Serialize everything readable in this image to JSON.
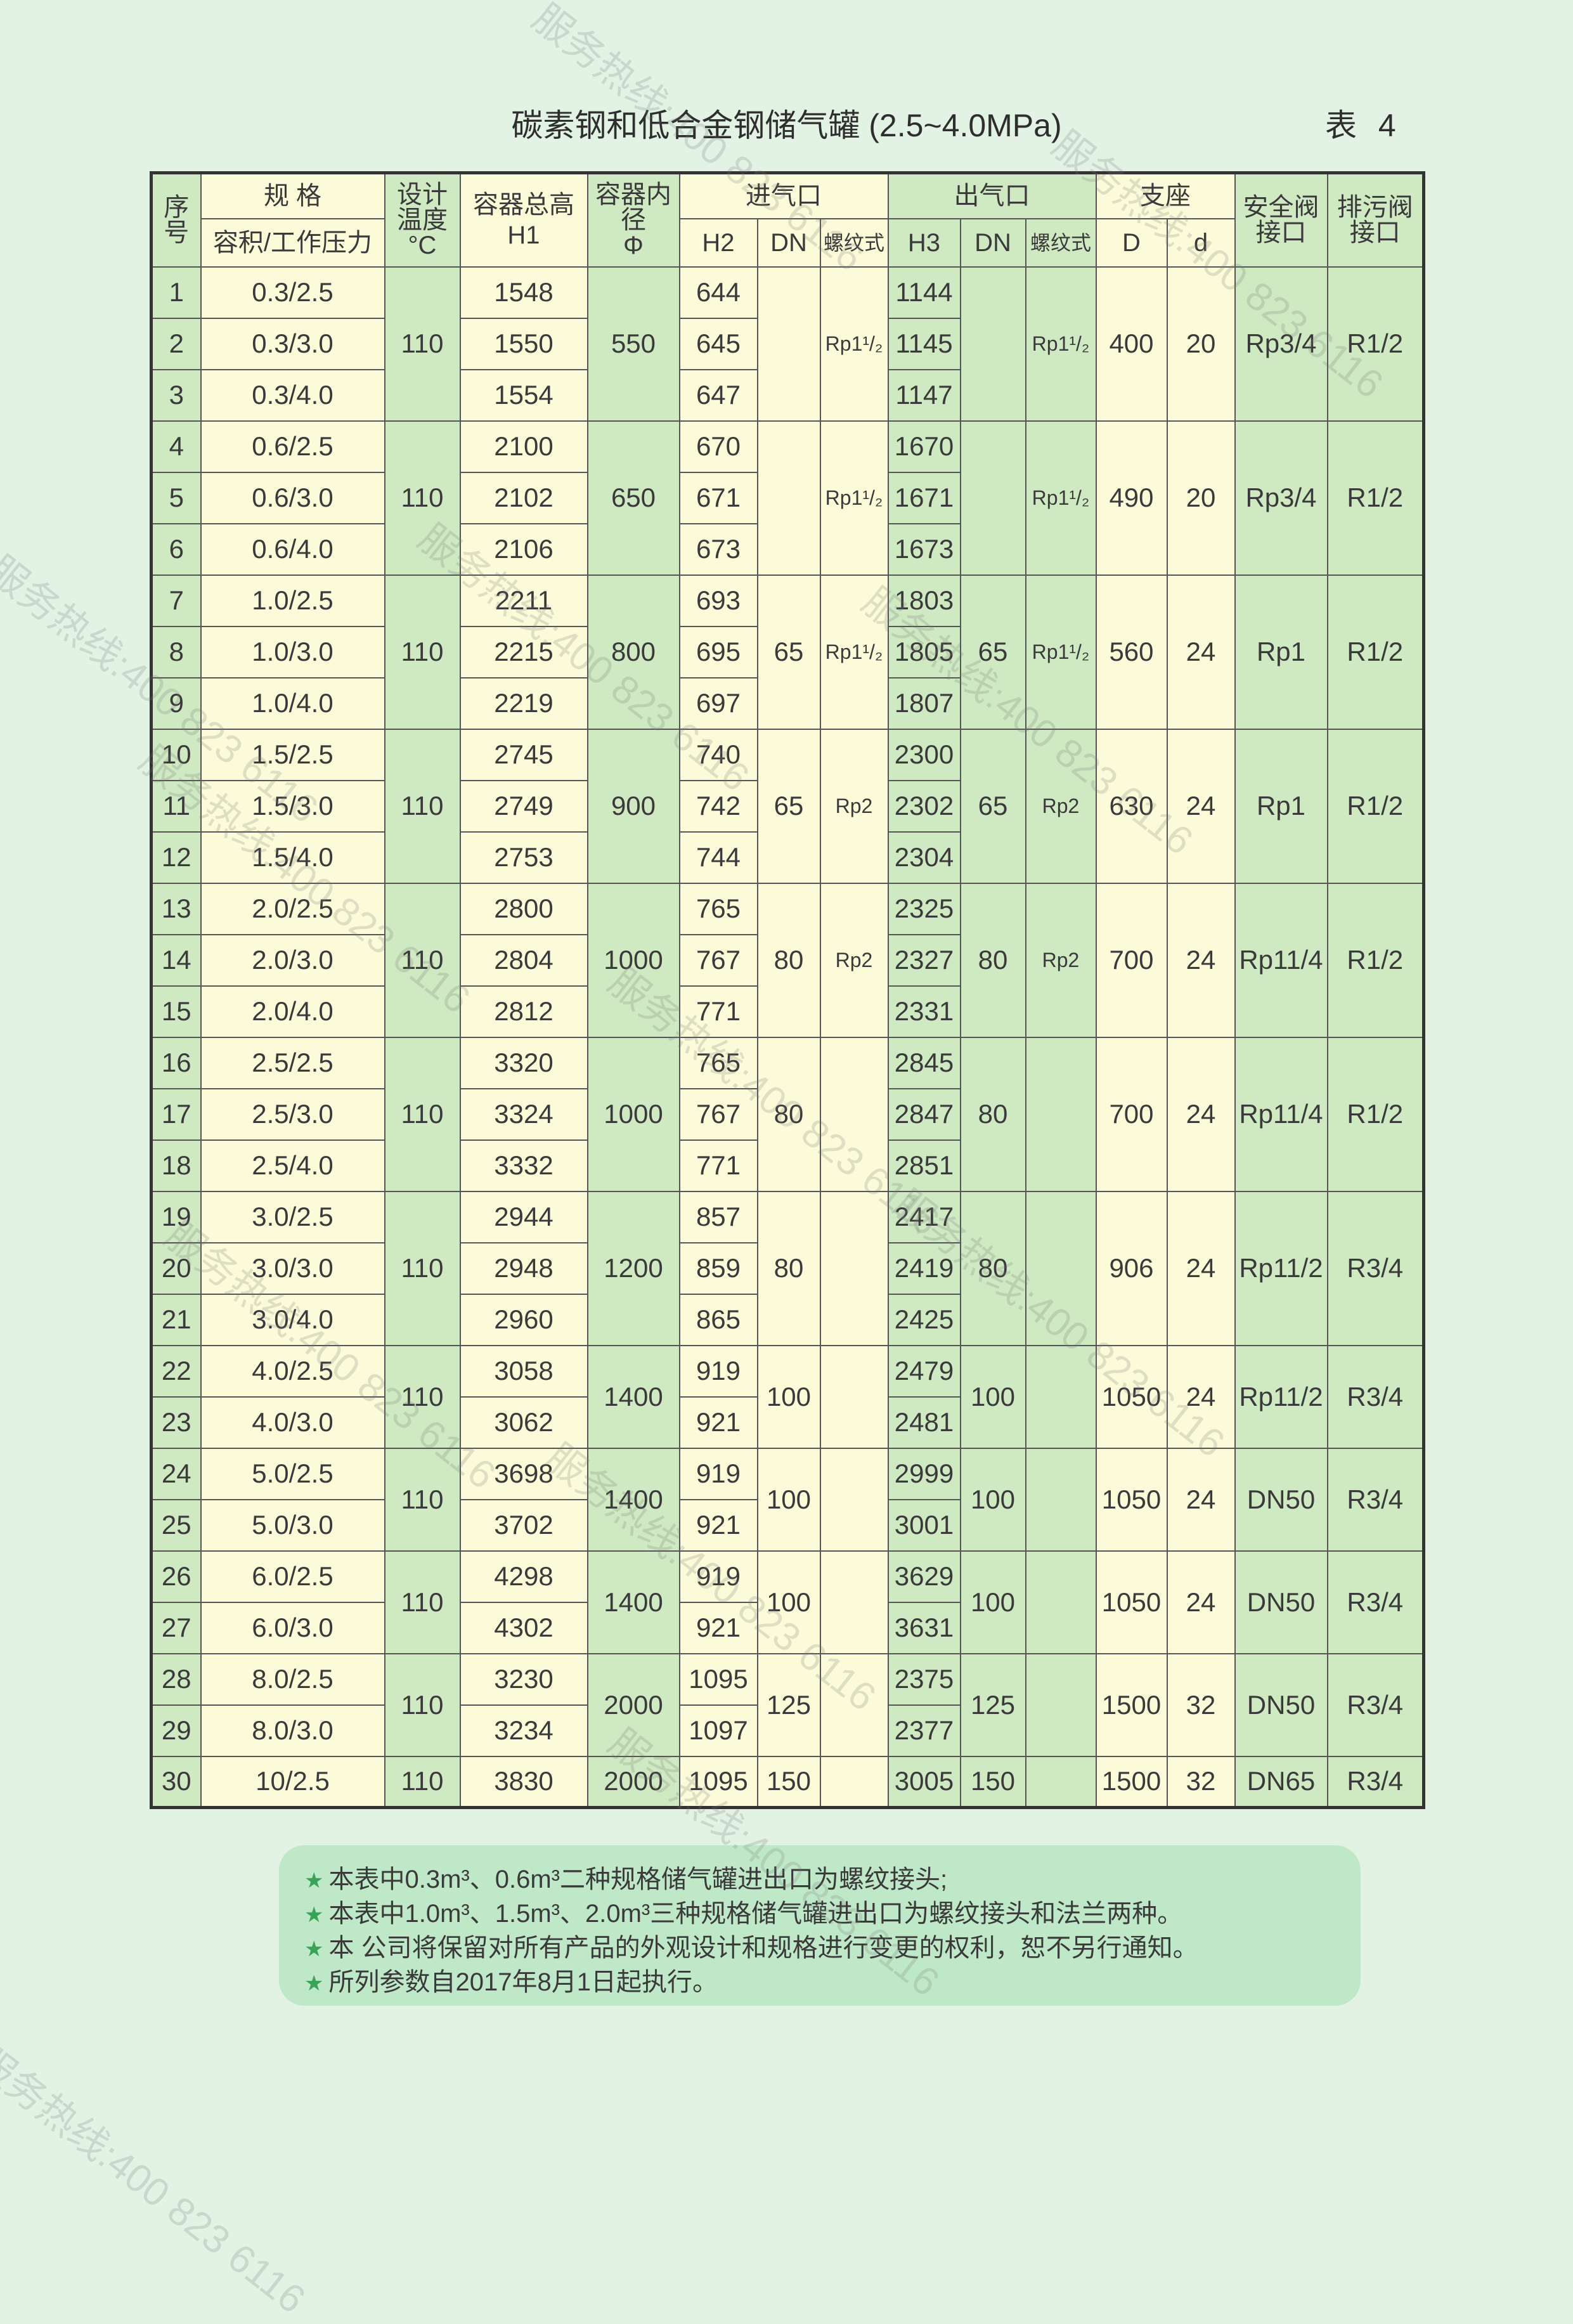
{
  "title": "碳素钢和低合金钢储气罐 (2.5~4.0MPa)",
  "table_number": "表 4",
  "watermark": "服务热线:400 823 6116",
  "colors": {
    "green_cell": "#cfeac2",
    "cream_cell": "#fbfbd9",
    "page_bg": "#e2f3e4",
    "note_bg": "#bfe8c8",
    "star": "#3aa357"
  },
  "headers": {
    "seq": "序号",
    "spec": "规 格",
    "spec_sub": "容积/工作压力",
    "temp": "设计温度",
    "temp_unit": "°C",
    "height": "容器总高",
    "height_sub": "H1",
    "diameter": "容器内径",
    "diameter_sub": "Φ",
    "inlet": "进气口",
    "outlet": "出气口",
    "support": "支座",
    "safety": "安全阀接口",
    "drain": "排污阀接口",
    "h2": "H2",
    "dn": "DN",
    "thread": "螺纹式",
    "h3": "H3",
    "d_big": "D",
    "d_small": "d"
  },
  "groups": [
    {
      "temp": "110",
      "dia": "550",
      "in_dn": "",
      "in_thread": "Rp1¹/₂",
      "out_dn": "",
      "out_thread": "Rp1¹/₂",
      "D": "400",
      "d": "20",
      "safety": "Rp3/4",
      "drain": "R1/2",
      "rows": [
        {
          "no": "1",
          "spec": "0.3/2.5",
          "h1": "1548",
          "h2": "644",
          "h3": "1144"
        },
        {
          "no": "2",
          "spec": "0.3/3.0",
          "h1": "1550",
          "h2": "645",
          "h3": "1145"
        },
        {
          "no": "3",
          "spec": "0.3/4.0",
          "h1": "1554",
          "h2": "647",
          "h3": "1147"
        }
      ]
    },
    {
      "temp": "110",
      "dia": "650",
      "in_dn": "",
      "in_thread": "Rp1¹/₂",
      "out_dn": "",
      "out_thread": "Rp1¹/₂",
      "D": "490",
      "d": "20",
      "safety": "Rp3/4",
      "drain": "R1/2",
      "rows": [
        {
          "no": "4",
          "spec": "0.6/2.5",
          "h1": "2100",
          "h2": "670",
          "h3": "1670"
        },
        {
          "no": "5",
          "spec": "0.6/3.0",
          "h1": "2102",
          "h2": "671",
          "h3": "1671"
        },
        {
          "no": "6",
          "spec": "0.6/4.0",
          "h1": "2106",
          "h2": "673",
          "h3": "1673"
        }
      ]
    },
    {
      "temp": "110",
      "dia": "800",
      "in_dn": "65",
      "in_thread": "Rp1¹/₂",
      "out_dn": "65",
      "out_thread": "Rp1¹/₂",
      "D": "560",
      "d": "24",
      "safety": "Rp1",
      "drain": "R1/2",
      "rows": [
        {
          "no": "7",
          "spec": "1.0/2.5",
          "h1": "2211",
          "h2": "693",
          "h3": "1803"
        },
        {
          "no": "8",
          "spec": "1.0/3.0",
          "h1": "2215",
          "h2": "695",
          "h3": "1805"
        },
        {
          "no": "9",
          "spec": "1.0/4.0",
          "h1": "2219",
          "h2": "697",
          "h3": "1807"
        }
      ]
    },
    {
      "temp": "110",
      "dia": "900",
      "in_dn": "65",
      "in_thread": "Rp2",
      "out_dn": "65",
      "out_thread": "Rp2",
      "D": "630",
      "d": "24",
      "safety": "Rp1",
      "drain": "R1/2",
      "rows": [
        {
          "no": "10",
          "spec": "1.5/2.5",
          "h1": "2745",
          "h2": "740",
          "h3": "2300"
        },
        {
          "no": "11",
          "spec": "1.5/3.0",
          "h1": "2749",
          "h2": "742",
          "h3": "2302"
        },
        {
          "no": "12",
          "spec": "1.5/4.0",
          "h1": "2753",
          "h2": "744",
          "h3": "2304"
        }
      ]
    },
    {
      "temp": "110",
      "dia": "1000",
      "in_dn": "80",
      "in_thread": "Rp2",
      "out_dn": "80",
      "out_thread": "Rp2",
      "D": "700",
      "d": "24",
      "safety": "Rp11/4",
      "drain": "R1/2",
      "rows": [
        {
          "no": "13",
          "spec": "2.0/2.5",
          "h1": "2800",
          "h2": "765",
          "h3": "2325"
        },
        {
          "no": "14",
          "spec": "2.0/3.0",
          "h1": "2804",
          "h2": "767",
          "h3": "2327"
        },
        {
          "no": "15",
          "spec": "2.0/4.0",
          "h1": "2812",
          "h2": "771",
          "h3": "2331"
        }
      ]
    },
    {
      "temp": "110",
      "dia": "1000",
      "in_dn": "80",
      "in_thread": "",
      "out_dn": "80",
      "out_thread": "",
      "D": "700",
      "d": "24",
      "safety": "Rp11/4",
      "drain": "R1/2",
      "rows": [
        {
          "no": "16",
          "spec": "2.5/2.5",
          "h1": "3320",
          "h2": "765",
          "h3": "2845"
        },
        {
          "no": "17",
          "spec": "2.5/3.0",
          "h1": "3324",
          "h2": "767",
          "h3": "2847"
        },
        {
          "no": "18",
          "spec": "2.5/4.0",
          "h1": "3332",
          "h2": "771",
          "h3": "2851"
        }
      ]
    },
    {
      "temp": "110",
      "dia": "1200",
      "in_dn": "80",
      "in_thread": "",
      "out_dn": "80",
      "out_thread": "",
      "D": "906",
      "d": "24",
      "safety": "Rp11/2",
      "drain": "R3/4",
      "rows": [
        {
          "no": "19",
          "spec": "3.0/2.5",
          "h1": "2944",
          "h2": "857",
          "h3": "2417"
        },
        {
          "no": "20",
          "spec": "3.0/3.0",
          "h1": "2948",
          "h2": "859",
          "h3": "2419"
        },
        {
          "no": "21",
          "spec": "3.0/4.0",
          "h1": "2960",
          "h2": "865",
          "h3": "2425"
        }
      ]
    },
    {
      "temp": "110",
      "dia": "1400",
      "in_dn": "100",
      "in_thread": "",
      "out_dn": "100",
      "out_thread": "",
      "D": "1050",
      "d": "24",
      "safety": "Rp11/2",
      "drain": "R3/4",
      "rows": [
        {
          "no": "22",
          "spec": "4.0/2.5",
          "h1": "3058",
          "h2": "919",
          "h3": "2479"
        },
        {
          "no": "23",
          "spec": "4.0/3.0",
          "h1": "3062",
          "h2": "921",
          "h3": "2481"
        }
      ]
    },
    {
      "temp": "110",
      "dia": "1400",
      "in_dn": "100",
      "in_thread": "",
      "out_dn": "100",
      "out_thread": "",
      "D": "1050",
      "d": "24",
      "safety": "DN50",
      "drain": "R3/4",
      "rows": [
        {
          "no": "24",
          "spec": "5.0/2.5",
          "h1": "3698",
          "h2": "919",
          "h3": "2999"
        },
        {
          "no": "25",
          "spec": "5.0/3.0",
          "h1": "3702",
          "h2": "921",
          "h3": "3001"
        }
      ]
    },
    {
      "temp": "110",
      "dia": "1400",
      "in_dn": "100",
      "in_thread": "",
      "out_dn": "100",
      "out_thread": "",
      "D": "1050",
      "d": "24",
      "safety": "DN50",
      "drain": "R3/4",
      "rows": [
        {
          "no": "26",
          "spec": "6.0/2.5",
          "h1": "4298",
          "h2": "919",
          "h3": "3629"
        },
        {
          "no": "27",
          "spec": "6.0/3.0",
          "h1": "4302",
          "h2": "921",
          "h3": "3631"
        }
      ]
    },
    {
      "temp": "110",
      "dia": "2000",
      "in_dn": "125",
      "in_thread": "",
      "out_dn": "125",
      "out_thread": "",
      "D": "1500",
      "d": "32",
      "safety": "DN50",
      "drain": "R3/4",
      "rows": [
        {
          "no": "28",
          "spec": "8.0/2.5",
          "h1": "3230",
          "h2": "1095",
          "h3": "2375"
        },
        {
          "no": "29",
          "spec": "8.0/3.0",
          "h1": "3234",
          "h2": "1097",
          "h3": "2377"
        }
      ]
    },
    {
      "temp": "110",
      "dia": "2000",
      "in_dn": "150",
      "in_thread": "",
      "out_dn": "150",
      "out_thread": "",
      "D": "1500",
      "d": "32",
      "safety": "DN65",
      "drain": "R3/4",
      "rows": [
        {
          "no": "30",
          "spec": "10/2.5",
          "h1": "3830",
          "h2": "1095",
          "h3": "3005"
        }
      ]
    }
  ],
  "notes": [
    "本表中0.3m³、0.6m³二种规格储气罐进出口为螺纹接头;",
    "本表中1.0m³、1.5m³、2.0m³三种规格储气罐进出口为螺纹接头和法兰两种。",
    "本 公司将保留对所有产品的外观设计和规格进行变更的权利，恕不另行通知。",
    "所列参数自2017年8月1日起执行。"
  ]
}
